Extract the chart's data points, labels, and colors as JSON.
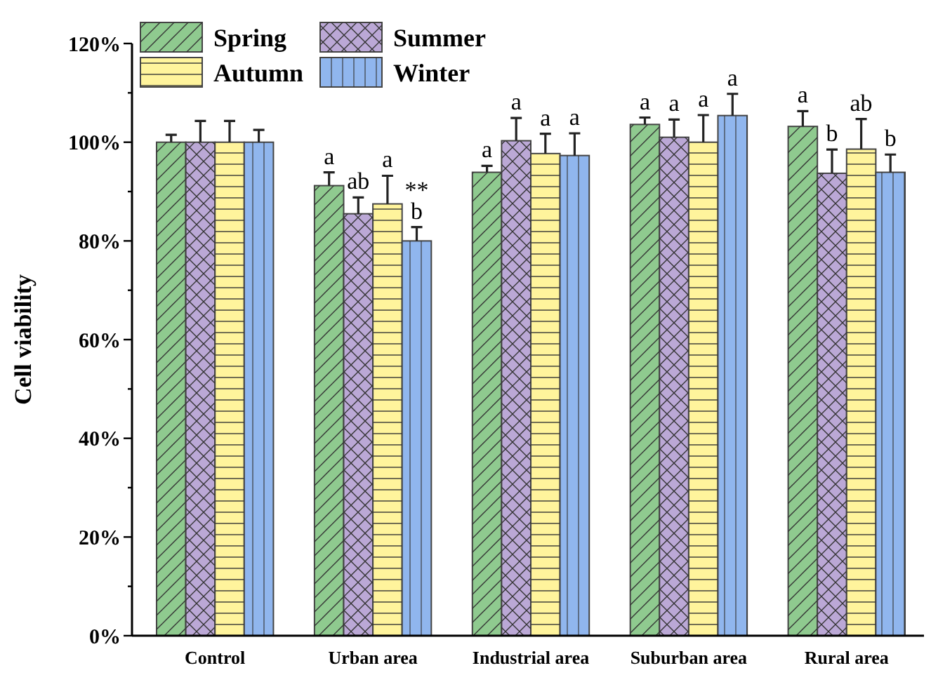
{
  "chart_data": {
    "type": "bar",
    "ylabel": "Cell viability",
    "categories": [
      "Control",
      "Urban area",
      "Industrial area",
      "Suburban area",
      "Rural area"
    ],
    "series": [
      {
        "name": "Spring",
        "color": "#8fca8f",
        "values": [
          100,
          91.2,
          93.9,
          103.6,
          103.2
        ],
        "errors": [
          1.5,
          2.7,
          1.3,
          1.4,
          3.1
        ],
        "value_labels": [
          null,
          "a",
          "a",
          "a",
          "a"
        ]
      },
      {
        "name": "Summer",
        "color": "#bba8d6",
        "values": [
          100,
          85.5,
          100.3,
          101,
          93.7
        ],
        "errors": [
          4.3,
          3.3,
          4.6,
          3.6,
          4.8
        ],
        "value_labels": [
          null,
          "ab",
          "a",
          "a",
          "b"
        ]
      },
      {
        "name": "Autumn",
        "color": "#fff49c",
        "values": [
          100,
          87.5,
          97.7,
          100,
          98.6
        ],
        "errors": [
          4.3,
          5.7,
          4,
          5.5,
          6.1
        ],
        "value_labels": [
          null,
          "a",
          "a",
          "a",
          "ab"
        ]
      },
      {
        "name": "Winter",
        "color": "#90b6ee",
        "values": [
          100,
          80,
          97.3,
          105.4,
          93.9
        ],
        "errors": [
          2.5,
          2.8,
          4.5,
          4.4,
          3.6
        ],
        "value_labels": [
          null,
          "**\nb",
          "a",
          "a",
          "b"
        ]
      }
    ],
    "ylim": [
      0,
      120
    ],
    "yticks": [
      {
        "value": 0,
        "label": "0%"
      },
      {
        "value": 10,
        "label": null
      },
      {
        "value": 20,
        "label": "20%"
      },
      {
        "value": 30,
        "label": null
      },
      {
        "value": 40,
        "label": "40%"
      },
      {
        "value": 50,
        "label": null
      },
      {
        "value": 60,
        "label": "60%"
      },
      {
        "value": 70,
        "label": null
      },
      {
        "value": 80,
        "label": "80%"
      },
      {
        "value": 90,
        "label": null
      },
      {
        "value": 100,
        "label": "100%"
      },
      {
        "value": 110,
        "label": null
      },
      {
        "value": 120,
        "label": "120%"
      }
    ],
    "grid": false,
    "legend": "top left"
  }
}
